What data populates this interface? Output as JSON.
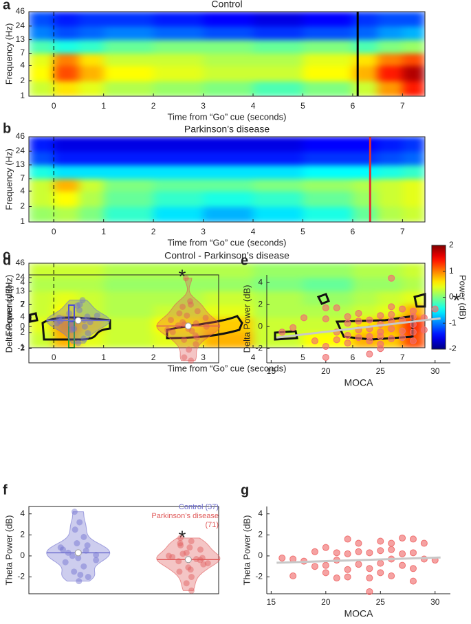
{
  "chart_data": [
    {
      "type": "heatmap",
      "panel": "a",
      "title": "Control",
      "xlabel": "Time from “Go” cue (seconds)",
      "ylabel": "Frequency (Hz)",
      "xlim": [
        -0.5,
        7.45
      ],
      "ylim": [
        1,
        46
      ],
      "log_y": true,
      "xticks": [
        0,
        1,
        2,
        3,
        4,
        5,
        6,
        7
      ],
      "yticks": [
        1,
        2,
        4,
        7,
        13,
        24,
        46
      ],
      "xbins": [
        -0.5,
        0,
        0.5,
        1,
        2,
        3,
        4,
        5,
        6,
        6.5,
        7,
        7.45
      ],
      "ybins": [
        1,
        2,
        4,
        7,
        13,
        24,
        46
      ],
      "z": [
        [
          0.3,
          0.6,
          0.4,
          0.2,
          0.1,
          0.0,
          -0.2,
          0.0,
          0.3,
          0.9,
          1.4
        ],
        [
          0.5,
          1.2,
          0.8,
          0.5,
          0.4,
          0.3,
          0.3,
          0.5,
          0.8,
          1.4,
          1.8
        ],
        [
          0.4,
          1.0,
          0.6,
          0.3,
          0.3,
          0.2,
          0.2,
          0.4,
          0.6,
          1.0,
          1.2
        ],
        [
          -0.2,
          -0.4,
          -0.3,
          -0.1,
          0.0,
          0.0,
          -0.1,
          0.0,
          -0.2,
          0.0,
          0.1
        ],
        [
          -1.0,
          -1.2,
          -1.1,
          -1.0,
          -1.1,
          -1.2,
          -1.3,
          -1.2,
          -1.1,
          -0.9,
          -0.8
        ],
        [
          -1.2,
          -1.4,
          -1.3,
          -1.3,
          -1.4,
          -1.5,
          -1.6,
          -1.5,
          -1.3,
          -1.2,
          -1.2
        ]
      ],
      "cue_line": 0,
      "vline": {
        "x": 6.1,
        "color": "#000000"
      }
    },
    {
      "type": "heatmap",
      "panel": "b",
      "title": "Parkinson’s disease",
      "xlabel": "Time from “Go” cue (seconds)",
      "ylabel": "Frequency (Hz)",
      "xlim": [
        -0.5,
        7.45
      ],
      "ylim": [
        1,
        46
      ],
      "log_y": true,
      "xticks": [
        0,
        1,
        2,
        3,
        4,
        5,
        6,
        7
      ],
      "yticks": [
        1,
        2,
        4,
        7,
        13,
        24,
        46
      ],
      "xbins": [
        -0.5,
        0,
        0.5,
        1,
        2,
        3,
        4,
        5,
        6,
        6.5,
        7,
        7.45
      ],
      "ybins": [
        1,
        2,
        4,
        7,
        13,
        24,
        46
      ],
      "z": [
        [
          0.1,
          0.2,
          0.0,
          -0.3,
          -0.6,
          -0.8,
          -0.6,
          -0.4,
          -0.1,
          0.2,
          0.3
        ],
        [
          0.3,
          0.5,
          0.2,
          -0.1,
          -0.3,
          -0.4,
          -0.3,
          -0.1,
          0.1,
          0.3,
          0.4
        ],
        [
          0.3,
          0.8,
          0.3,
          0.0,
          -0.1,
          -0.1,
          0.0,
          0.1,
          0.2,
          0.3,
          0.4
        ],
        [
          -0.4,
          -0.6,
          -0.6,
          -0.6,
          -0.6,
          -0.6,
          -0.6,
          -0.5,
          -0.5,
          -0.4,
          -0.3
        ],
        [
          -1.2,
          -1.4,
          -1.4,
          -1.4,
          -1.4,
          -1.4,
          -1.4,
          -1.3,
          -1.3,
          -1.2,
          -1.1
        ],
        [
          -1.4,
          -1.6,
          -1.6,
          -1.6,
          -1.6,
          -1.6,
          -1.6,
          -1.5,
          -1.5,
          -1.4,
          -1.3
        ]
      ],
      "cue_line": 0,
      "vline": {
        "x": 6.35,
        "color": "#e03030"
      }
    },
    {
      "type": "heatmap",
      "panel": "c",
      "title": "Control - Parkinson’s disease",
      "xlabel": "Time from “Go” cue (seconds)",
      "ylabel": "Frequency (Hz)",
      "xlim": [
        -0.5,
        7.45
      ],
      "ylim": [
        1,
        46
      ],
      "log_y": true,
      "xticks": [
        0,
        1,
        2,
        3,
        4,
        5,
        6,
        7
      ],
      "yticks": [
        1,
        2,
        4,
        7,
        13,
        24,
        46
      ],
      "xbins": [
        -0.5,
        0,
        0.5,
        1,
        2,
        3,
        4,
        5,
        6,
        6.5,
        7,
        7.45
      ],
      "ybins": [
        1,
        2,
        4,
        7,
        13,
        24,
        46
      ],
      "z": [
        [
          0.3,
          0.8,
          0.4,
          0.3,
          0.4,
          0.8,
          0.3,
          0.5,
          0.8,
          0.7,
          1.2
        ],
        [
          0.4,
          0.9,
          0.6,
          0.3,
          0.5,
          0.7,
          0.3,
          0.3,
          0.6,
          0.8,
          1.3
        ],
        [
          0.3,
          0.5,
          0.3,
          0.2,
          0.3,
          0.4,
          0.2,
          0.2,
          0.3,
          0.4,
          0.8
        ],
        [
          0.3,
          0.4,
          0.3,
          0.2,
          0.2,
          0.3,
          0.2,
          0.1,
          0.2,
          0.3,
          0.4
        ],
        [
          0.2,
          0.2,
          0.2,
          0.1,
          0.1,
          0.1,
          0.0,
          -0.1,
          0.1,
          0.1,
          0.2
        ],
        [
          0.3,
          0.3,
          0.3,
          0.2,
          0.2,
          0.2,
          0.1,
          0.1,
          0.2,
          0.2,
          0.3
        ]
      ],
      "cue_line": 0,
      "clim": [
        -2,
        2
      ],
      "colorbar_ticks": [
        -2,
        -1,
        0,
        1,
        2
      ],
      "colorbar_label": "Power (dB)"
    },
    {
      "type": "violin",
      "panel": "d",
      "ylabel": "Delta Power (dB)",
      "ylim": [
        -3.3,
        4.7
      ],
      "yticks": [
        -2,
        0,
        2,
        4
      ],
      "annotation": "*",
      "series": [
        {
          "color": "#6f6fcf",
          "median": 0.55,
          "values": [
            0.3,
            0.6,
            1.2,
            2.4,
            1.9,
            0.8,
            0.0,
            -0.3,
            -1.1,
            -1.5,
            0.5,
            0.9,
            0.2,
            -0.6,
            1.5,
            0.7,
            0.4,
            -0.2,
            1.0,
            2.0
          ]
        },
        {
          "color": "#e05a5a",
          "median": 0.05,
          "values": [
            4.4,
            2.3,
            1.8,
            1.4,
            1.0,
            0.6,
            0.3,
            0.1,
            0.0,
            -0.2,
            -0.5,
            -0.8,
            -1.2,
            -1.6,
            -2.1,
            -2.8,
            -3.1,
            0.4,
            0.8,
            -0.4,
            1.2,
            -1.0,
            0.2,
            -0.3,
            2.0
          ]
        }
      ]
    },
    {
      "type": "scatter",
      "panel": "e",
      "xlabel": "MOCA",
      "ylabel": "Delta Power (dB)",
      "xlim": [
        14.6,
        31.4
      ],
      "ylim": [
        -3.3,
        4.7
      ],
      "xticks": [
        15,
        20,
        25,
        30
      ],
      "yticks": [
        -2,
        0,
        2,
        4
      ],
      "annotation": "*",
      "series": [
        {
          "color": "#f07070",
          "x": [
            16,
            17,
            18,
            20,
            20,
            20,
            21,
            21,
            21,
            22,
            22,
            22,
            22,
            23,
            23,
            23,
            24,
            24,
            24,
            24,
            24,
            25,
            25,
            25,
            25,
            25,
            25,
            26,
            26,
            26,
            26,
            26,
            26,
            27,
            27,
            27,
            27,
            28,
            28,
            28,
            28,
            28,
            29,
            29,
            30,
            19,
            20,
            23
          ],
          "values": [
            -0.5,
            -0.1,
            0.8,
            1.7,
            -2.8,
            -1.8,
            -0.5,
            -1.2,
            1.7,
            0.9,
            0.3,
            -0.8,
            -1.5,
            1.2,
            -0.3,
            0.5,
            0.6,
            -0.9,
            -2.5,
            -1.3,
            -0.2,
            1.0,
            0.2,
            -0.5,
            -0.9,
            -1.6,
            -2.0,
            4.4,
            1.8,
            1.1,
            0.5,
            -0.2,
            -1.1,
            1.6,
            0.6,
            -0.4,
            -1.0,
            1.4,
            0.9,
            0.2,
            -0.5,
            -1.3,
            0.8,
            -0.3,
            1.6,
            -1.3,
            0.7,
            -1.0
          ]
        }
      ],
      "fit": {
        "color": "#c8c8c8",
        "x": [
          15.5,
          30.5
        ],
        "values": [
          -1.0,
          0.75
        ]
      }
    },
    {
      "type": "violin",
      "panel": "f",
      "ylabel": "Theta Power (dB)",
      "ylim": [
        -3.6,
        4.7
      ],
      "yticks": [
        -2,
        0,
        2,
        4
      ],
      "annotation": "*",
      "series": [
        {
          "name": "Control (37)",
          "color": "#6f6fcf",
          "median": 0.3,
          "values": [
            4.2,
            3.2,
            2.5,
            1.8,
            1.2,
            0.8,
            0.5,
            0.3,
            0.1,
            -0.2,
            -0.6,
            -1.0,
            -1.5,
            -2.0,
            -2.4,
            0.6,
            1.0,
            0.0,
            -0.4,
            -1.8
          ]
        },
        {
          "name": "Parkinson’s disease (71)",
          "color": "#e05a5a",
          "median": -0.35,
          "values": [
            1.7,
            1.4,
            1.0,
            0.6,
            0.3,
            0.0,
            -0.3,
            -0.5,
            -0.8,
            -1.1,
            -1.5,
            -2.0,
            -2.6,
            -3.3,
            0.8,
            -0.1,
            -0.4,
            0.2,
            -0.7,
            -1.3,
            1.2,
            -0.2
          ]
        }
      ]
    },
    {
      "type": "scatter",
      "panel": "g",
      "xlabel": "MOCA",
      "ylabel": "Theta Power (dB)",
      "xlim": [
        14.6,
        31.4
      ],
      "ylim": [
        -3.6,
        4.7
      ],
      "xticks": [
        15,
        20,
        25,
        30
      ],
      "yticks": [
        -2,
        0,
        2,
        4
      ],
      "series": [
        {
          "color": "#f07070",
          "x": [
            16,
            17,
            17,
            18,
            19,
            20,
            20,
            20,
            21,
            21,
            21,
            22,
            22,
            22,
            22,
            23,
            23,
            23,
            24,
            24,
            24,
            24,
            25,
            25,
            25,
            25,
            26,
            26,
            26,
            26,
            27,
            27,
            27,
            28,
            28,
            28,
            28,
            29,
            29,
            30,
            19
          ],
          "values": [
            -0.2,
            -0.3,
            -1.9,
            -0.5,
            0.4,
            0.8,
            -0.9,
            -1.6,
            0.3,
            -0.4,
            -2.1,
            1.6,
            0.2,
            -1.3,
            -2.0,
            1.2,
            0.4,
            -0.8,
            0.3,
            -1.2,
            -2.1,
            -3.4,
            1.4,
            0.5,
            -0.7,
            -1.6,
            1.2,
            0.6,
            -0.3,
            -1.9,
            0.2,
            1.7,
            -0.9,
            1.6,
            0.3,
            -1.2,
            -2.4,
            1.2,
            -0.3,
            -0.4,
            -1.0
          ]
        }
      ],
      "fit": {
        "color": "#c8c8c8",
        "x": [
          15.5,
          30.5
        ],
        "values": [
          -0.65,
          -0.15
        ]
      }
    }
  ]
}
